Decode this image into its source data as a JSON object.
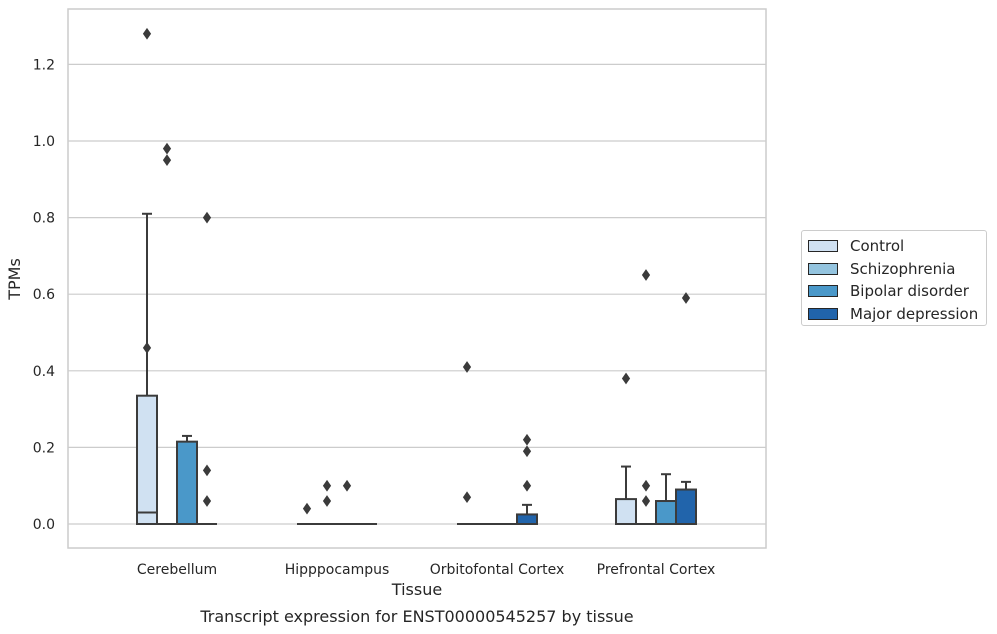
{
  "chart_data": {
    "type": "box",
    "title": "",
    "caption": "Transcript expression for ENST00000545257 by tissue",
    "xlabel": "Tissue",
    "ylabel": "TPMs",
    "ylim": [
      -0.062,
      1.35
    ],
    "yticks": [
      0.0,
      0.2,
      0.4,
      0.6,
      0.8,
      1.0,
      1.2
    ],
    "ytick_labels": [
      "0.0",
      "0.2",
      "0.4",
      "0.6",
      "0.8",
      "1.0",
      "1.2"
    ],
    "grid": "horizontal",
    "legend_placement": "right",
    "categories": [
      "Cerebellum",
      "Hipppocampus",
      "Orbitofontal Cortex",
      "Prefrontal Cortex"
    ],
    "series": [
      {
        "name": "Control",
        "color": "#d0e1f2",
        "boxes": [
          {
            "q1": 0.0,
            "median": 0.03,
            "q3": 0.335,
            "whisker_low": 0.0,
            "whisker_high": 0.81,
            "outliers": [
              1.28,
              0.46
            ]
          },
          {
            "q1": 0.0,
            "median": 0.0,
            "q3": 0.0,
            "whisker_low": 0.0,
            "whisker_high": 0.0,
            "outliers": [
              0.04
            ]
          },
          {
            "q1": 0.0,
            "median": 0.0,
            "q3": 0.0,
            "whisker_low": 0.0,
            "whisker_high": 0.0,
            "outliers": [
              0.41,
              0.07
            ]
          },
          {
            "q1": 0.0,
            "median": 0.0,
            "q3": 0.065,
            "whisker_low": 0.0,
            "whisker_high": 0.15,
            "outliers": [
              0.38
            ]
          }
        ]
      },
      {
        "name": "Schizophrenia",
        "color": "#94c4df",
        "boxes": [
          {
            "q1": 0.0,
            "median": 0.0,
            "q3": 0.0,
            "whisker_low": 0.0,
            "whisker_high": 0.0,
            "outliers": [
              0.98,
              0.95
            ]
          },
          {
            "q1": 0.0,
            "median": 0.0,
            "q3": 0.0,
            "whisker_low": 0.0,
            "whisker_high": 0.0,
            "outliers": [
              0.1,
              0.06
            ]
          },
          {
            "q1": 0.0,
            "median": 0.0,
            "q3": 0.0,
            "whisker_low": 0.0,
            "whisker_high": 0.0,
            "outliers": []
          },
          {
            "q1": 0.0,
            "median": 0.0,
            "q3": 0.0,
            "whisker_low": 0.0,
            "whisker_high": 0.0,
            "outliers": [
              0.65,
              0.1,
              0.06
            ]
          }
        ]
      },
      {
        "name": "Bipolar disorder",
        "color": "#4a98c9",
        "boxes": [
          {
            "q1": 0.0,
            "median": 0.0,
            "q3": 0.215,
            "whisker_low": 0.0,
            "whisker_high": 0.23,
            "outliers": []
          },
          {
            "q1": 0.0,
            "median": 0.0,
            "q3": 0.0,
            "whisker_low": 0.0,
            "whisker_high": 0.0,
            "outliers": [
              0.1
            ]
          },
          {
            "q1": 0.0,
            "median": 0.0,
            "q3": 0.0,
            "whisker_low": 0.0,
            "whisker_high": 0.0,
            "outliers": []
          },
          {
            "q1": 0.0,
            "median": 0.0,
            "q3": 0.06,
            "whisker_low": 0.0,
            "whisker_high": 0.13,
            "outliers": []
          }
        ]
      },
      {
        "name": "Major depression",
        "color": "#2164ab",
        "boxes": [
          {
            "q1": 0.0,
            "median": 0.0,
            "q3": 0.0,
            "whisker_low": 0.0,
            "whisker_high": 0.0,
            "outliers": [
              0.8,
              0.14,
              0.06
            ]
          },
          {
            "q1": 0.0,
            "median": 0.0,
            "q3": 0.0,
            "whisker_low": 0.0,
            "whisker_high": 0.0,
            "outliers": []
          },
          {
            "q1": 0.0,
            "median": 0.0,
            "q3": 0.025,
            "whisker_low": 0.0,
            "whisker_high": 0.05,
            "outliers": [
              0.22,
              0.19,
              0.1
            ]
          },
          {
            "q1": 0.0,
            "median": 0.0,
            "q3": 0.09,
            "whisker_low": 0.0,
            "whisker_high": 0.11,
            "outliers": [
              0.59
            ]
          }
        ]
      }
    ]
  }
}
